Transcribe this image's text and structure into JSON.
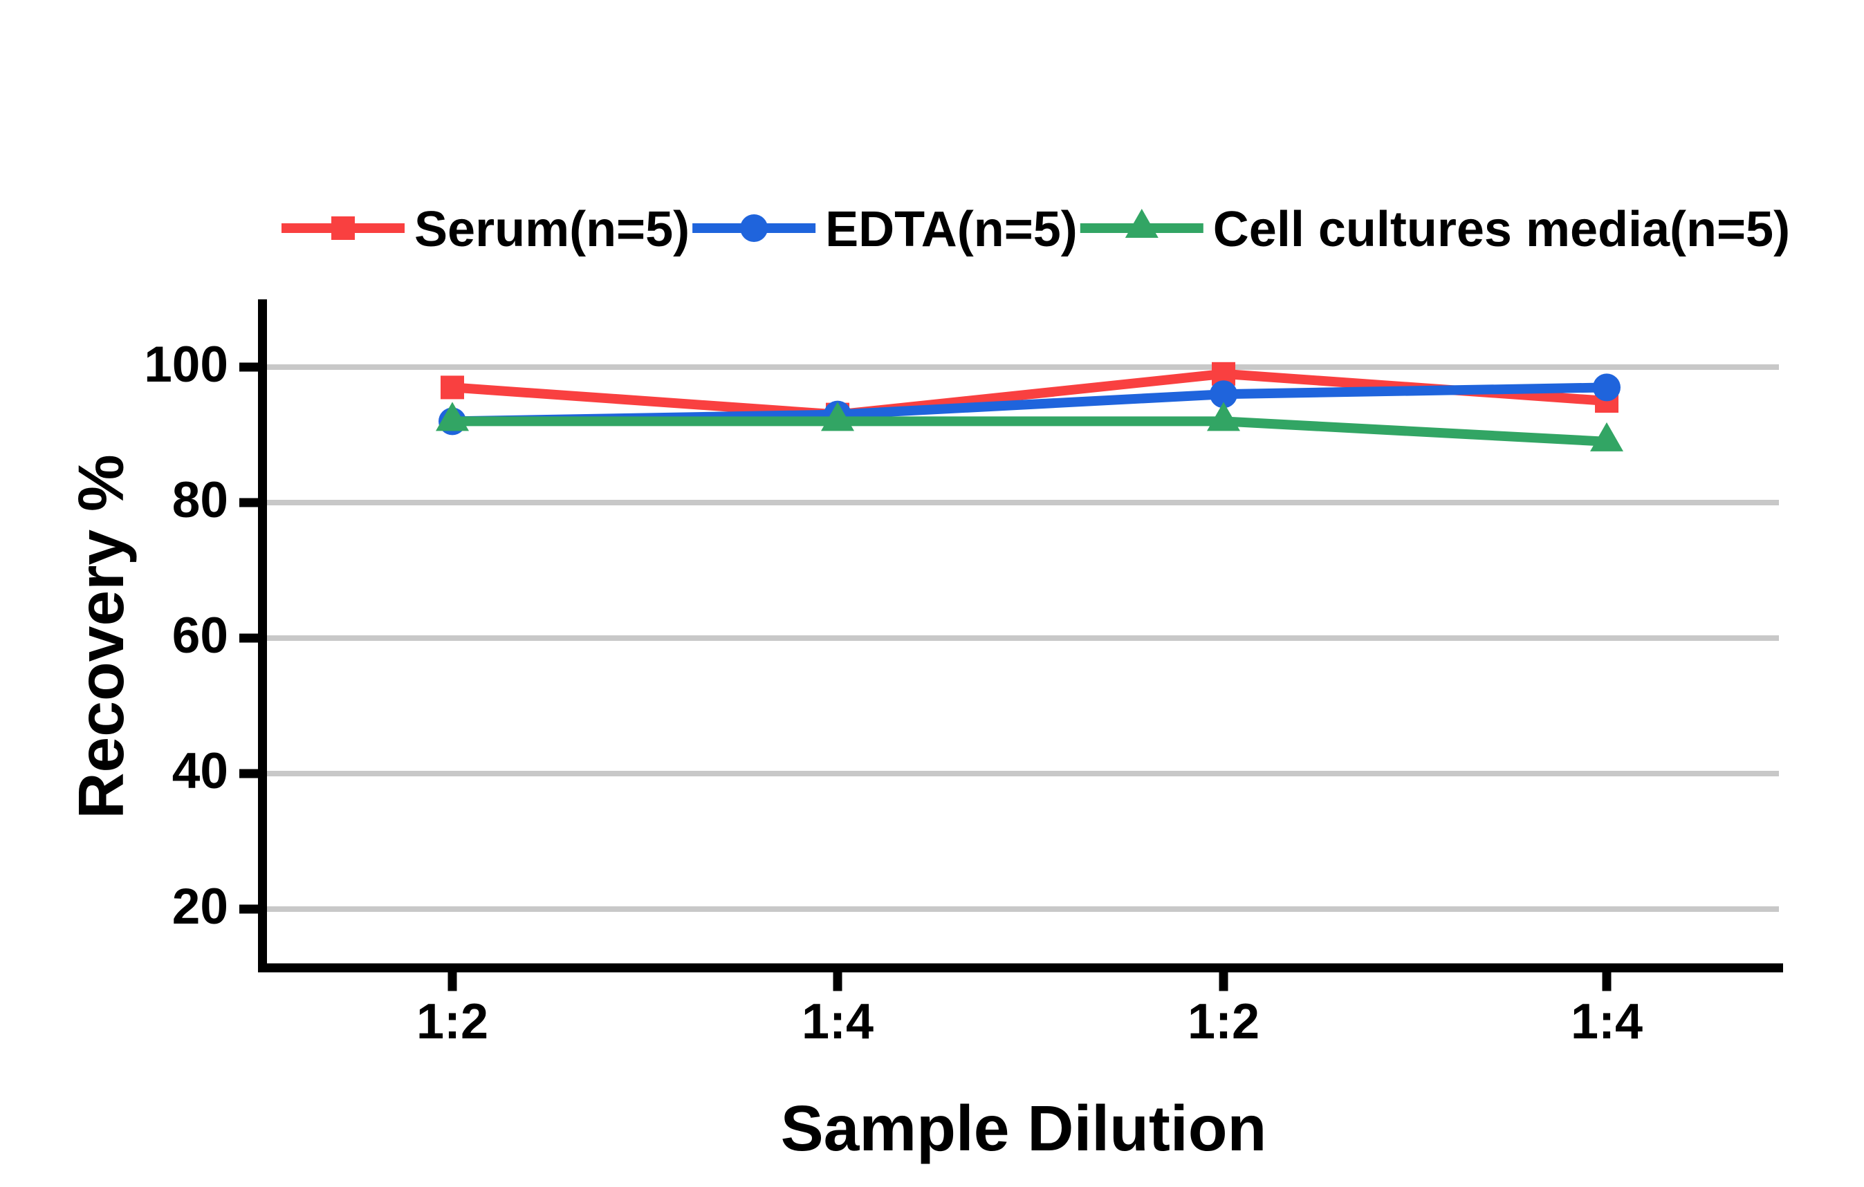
{
  "chart_data": {
    "type": "line",
    "title": "",
    "xlabel": "Sample Dilution",
    "ylabel": "Recovery %",
    "categories": [
      "1:2",
      "1:4",
      "1:2",
      "1:4"
    ],
    "series": [
      {
        "name": "Serum(n=5)",
        "marker": "square",
        "color": "#F94040",
        "values": [
          97,
          93,
          99,
          95
        ]
      },
      {
        "name": "EDTA(n=5)",
        "marker": "circle",
        "color": "#1F64DC",
        "values": [
          92,
          93,
          96,
          97
        ]
      },
      {
        "name": "Cell cultures media(n=5)",
        "marker": "triangle",
        "color": "#32A564",
        "values": [
          92,
          92,
          92,
          89
        ]
      }
    ],
    "yticks": [
      20,
      40,
      60,
      80,
      100
    ],
    "ylim": [
      12,
      110
    ],
    "grid": "horizontal-only",
    "gridline_color": "#C8C8C8",
    "axis_color": "#000000",
    "background_color": "#FFFFFF",
    "legend_position": "top"
  }
}
